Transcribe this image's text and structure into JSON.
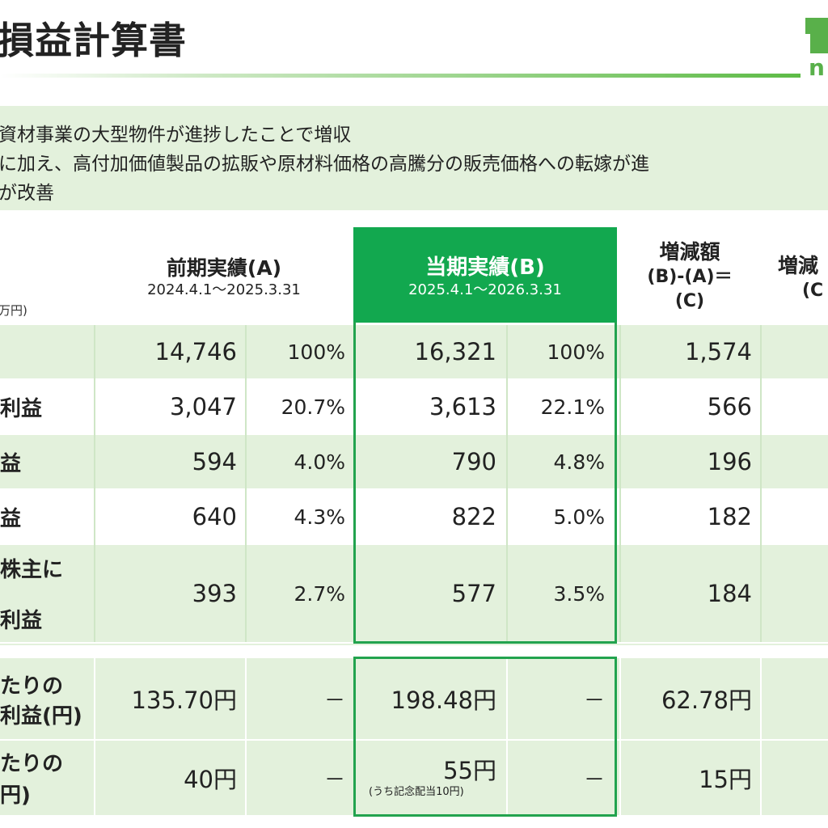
{
  "title": "損益計算書",
  "summary": [
    "資材事業の大型物件が進捗したことで増収",
    "に加え、高付加価値製品の拡販や原材料価格の高騰分の販売価格への転嫁が進",
    "が改善"
  ],
  "logo_text": "n",
  "unit_label": "万円)",
  "headers": {
    "prev_title": "前期実績(A)",
    "prev_period": "2024.4.1～2025.3.31",
    "cur_title": "当期実績(B)",
    "cur_period": "2025.4.1～2026.3.31",
    "diff_line1": "増減額",
    "diff_line2": "(B)-(A)＝",
    "diff_line3": "(C)",
    "rate_line1": "増減",
    "rate_line2": "(C"
  },
  "rows": [
    {
      "label": "",
      "prev": "14,746",
      "prev_pct": "100%",
      "cur": "16,321",
      "cur_pct": "100%",
      "diff": "1,574"
    },
    {
      "label": "利益",
      "prev": "3,047",
      "prev_pct": "20.7%",
      "cur": "3,613",
      "cur_pct": "22.1%",
      "diff": "566"
    },
    {
      "label": "益",
      "prev": "594",
      "prev_pct": "4.0%",
      "cur": "790",
      "cur_pct": "4.8%",
      "diff": "196"
    },
    {
      "label": "益",
      "prev": "640",
      "prev_pct": "4.3%",
      "cur": "822",
      "cur_pct": "5.0%",
      "diff": "182"
    },
    {
      "label_top": "株主に",
      "label_bottom": "利益",
      "prev": "393",
      "prev_pct": "2.7%",
      "cur": "577",
      "cur_pct": "3.5%",
      "diff": "184"
    }
  ],
  "per_share": [
    {
      "label_top": "たりの",
      "label_bottom": "利益(円)",
      "prev": "135.70円",
      "prev_pct": "－",
      "cur": "198.48円",
      "cur_pct": "－",
      "diff": "62.78円"
    },
    {
      "label_top": "たりの",
      "label_bottom": "円)",
      "prev": "40円",
      "prev_pct": "－",
      "cur": "55円",
      "cur_note": "(うち記念配当10円)",
      "cur_pct": "－",
      "diff": "15円"
    }
  ],
  "colors": {
    "accent": "#12a84f",
    "shade": "#e3f1dc",
    "border": "#22a34e"
  }
}
